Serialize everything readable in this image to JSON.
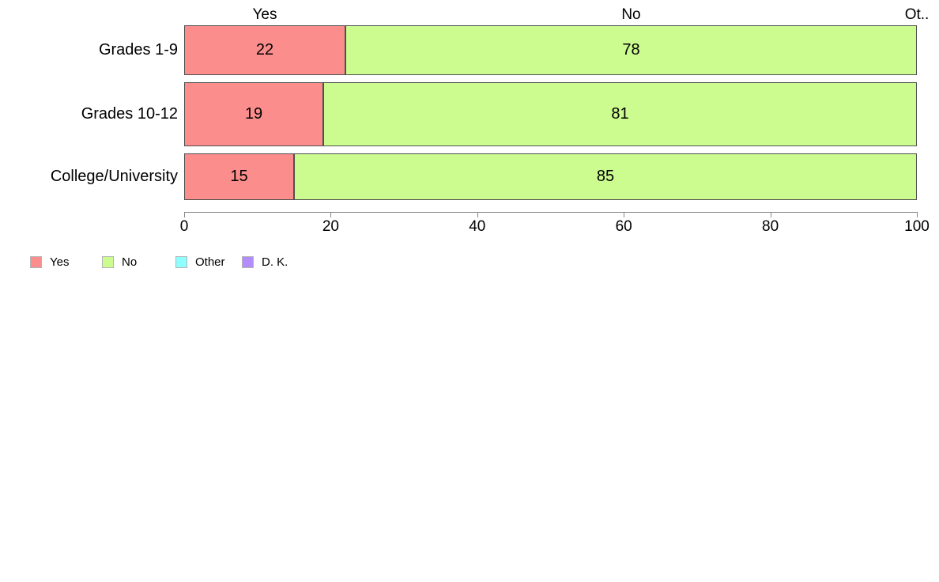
{
  "chart_data": {
    "type": "bar",
    "orientation": "horizontal",
    "stacked": true,
    "title": "",
    "categories": [
      "Grades 1-9",
      "Grades 10-12",
      "College/University"
    ],
    "series": [
      {
        "name": "Yes",
        "color": "#FC8D8D",
        "values": [
          22,
          19,
          15
        ]
      },
      {
        "name": "No",
        "color": "#CCFC8F",
        "values": [
          78,
          81,
          85
        ]
      },
      {
        "name": "Other",
        "color": "#8EFEFE",
        "values": [
          0,
          0,
          0
        ]
      },
      {
        "name": "D. K.",
        "color": "#B28DFB",
        "values": [
          0,
          0,
          0
        ]
      }
    ],
    "x_axis": {
      "range": [
        0,
        100
      ],
      "ticks": [
        0,
        20,
        40,
        60,
        80,
        100
      ]
    },
    "column_headers": [
      {
        "label": "Yes",
        "series_index": 0
      },
      {
        "label": "No",
        "series_index": 1
      },
      {
        "label": "Ot..",
        "series_index": 2
      }
    ],
    "legend": {
      "position": "bottom-left",
      "items": [
        {
          "label": "Yes",
          "color": "#FC8D8D"
        },
        {
          "label": "No",
          "color": "#CCFC8F"
        },
        {
          "label": "Other",
          "color": "#8EFEFE"
        },
        {
          "label": "D. K.",
          "color": "#B28DFB"
        }
      ]
    }
  }
}
